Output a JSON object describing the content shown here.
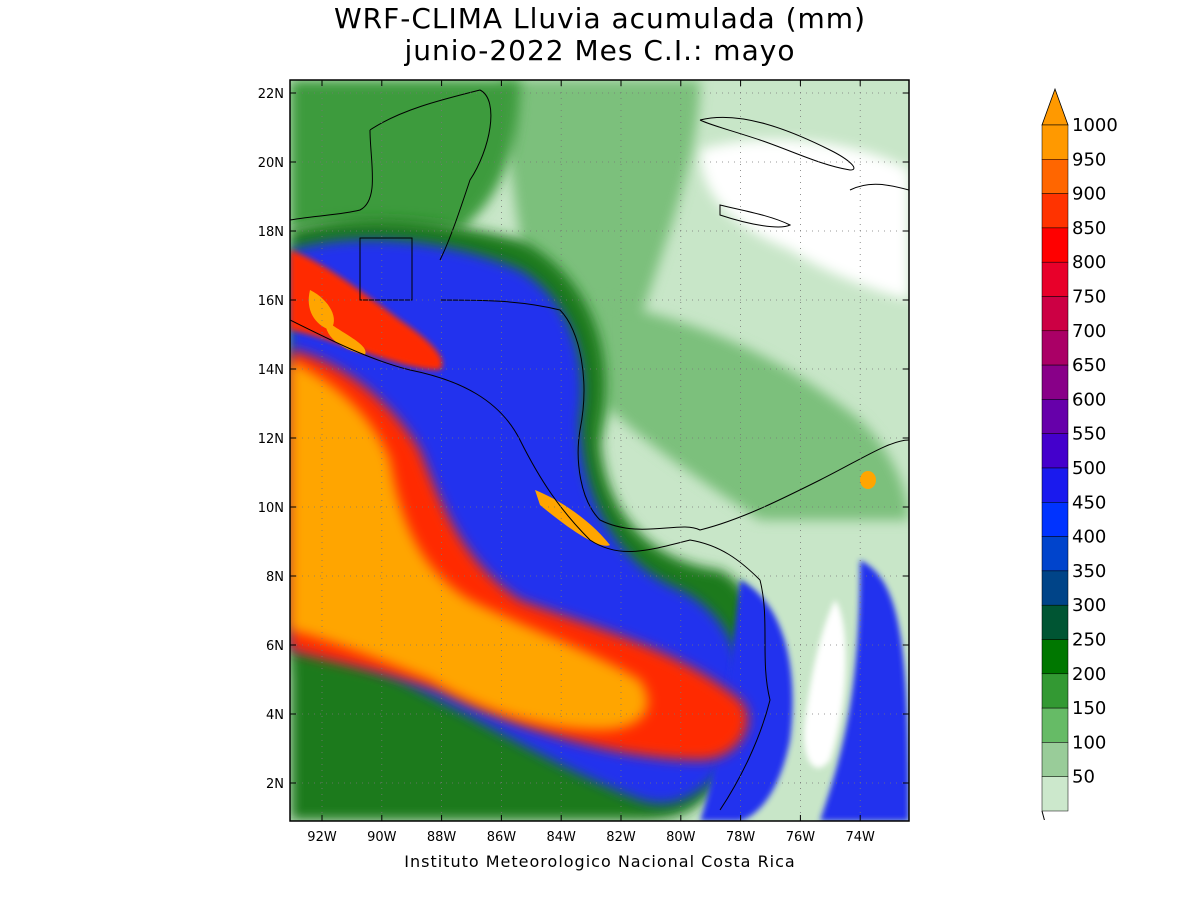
{
  "title_line1": "WRF-CLIMA Lluvia acumulada (mm)",
  "title_line2": "junio-2022 Mes C.I.: mayo",
  "credit": "Instituto Meteorologico Nacional Costa Rica",
  "lat_labels": [
    "22N",
    "20N",
    "18N",
    "16N",
    "14N",
    "12N",
    "10N",
    "8N",
    "6N",
    "4N",
    "2N"
  ],
  "lon_labels": [
    "92W",
    "90W",
    "88W",
    "86W",
    "84W",
    "82W",
    "80W",
    "78W",
    "76W",
    "74W"
  ],
  "colorbar": {
    "labels": [
      "1000",
      "950",
      "900",
      "850",
      "800",
      "750",
      "700",
      "650",
      "600",
      "550",
      "500",
      "450",
      "400",
      "350",
      "300",
      "250",
      "200",
      "150",
      "100",
      "50"
    ],
    "colors": [
      "#ff9900",
      "#ff6600",
      "#ff3300",
      "#ff0000",
      "#e8002a",
      "#cc0044",
      "#aa0066",
      "#880088",
      "#6600aa",
      "#4400cc",
      "#1a1aee",
      "#0033ff",
      "#0044cc",
      "#004488",
      "#005533",
      "#007700",
      "#339933",
      "#66bb66",
      "#99cc99",
      "#cce8cc"
    ],
    "over_color": "#ff9900"
  },
  "legend_colors": {
    "orange": "#ffa500",
    "red": "#ff2a00",
    "blue": "#2233ee",
    "darkgreen": "#1a7a1a",
    "green": "#3d9b3d",
    "lightgreen": "#7cc07c",
    "palegreen": "#c8e6c8"
  }
}
